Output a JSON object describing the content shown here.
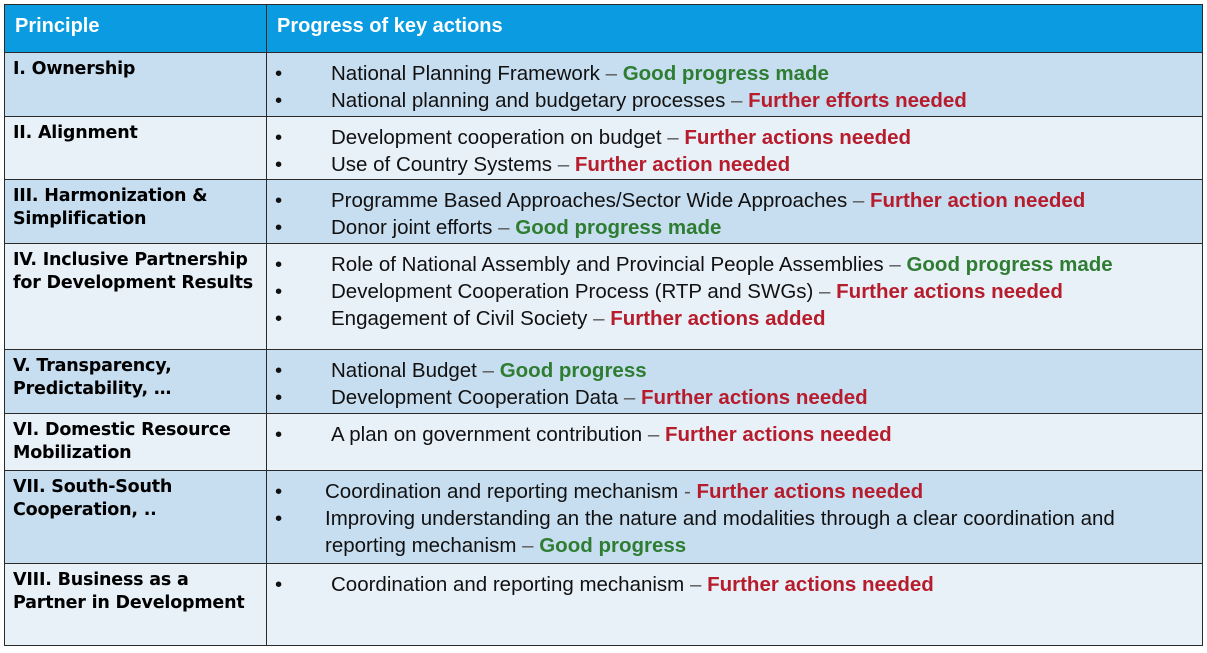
{
  "header": {
    "col_principle": "Principle",
    "col_progress": "Progress of key actions"
  },
  "rows": [
    {
      "principle": "I. Ownership",
      "items": [
        {
          "text": "National Planning Framework",
          "sep": "–",
          "status": "Good progress made",
          "kind": "good"
        },
        {
          "text": "National planning and budgetary processes",
          "sep": "–",
          "status": "Further efforts needed",
          "kind": "bad"
        }
      ]
    },
    {
      "principle": "II. Alignment",
      "items": [
        {
          "text": "Development cooperation on budget",
          "sep": "–",
          "status": "Further actions needed",
          "kind": "bad"
        },
        {
          "text": "Use of Country Systems",
          "sep": "–",
          "status": "Further action needed",
          "kind": "bad"
        }
      ]
    },
    {
      "principle": "III. Harmonization & Simplification",
      "items": [
        {
          "text": "Programme Based Approaches/Sector Wide Approaches",
          "sep": "–",
          "status": "Further action needed",
          "kind": "bad"
        },
        {
          "text": "Donor joint efforts",
          "sep": "–",
          "status": "Good progress made",
          "kind": "good"
        }
      ]
    },
    {
      "principle": "IV. Inclusive Partnership for Development Results",
      "items": [
        {
          "text": "Role of National Assembly and Provincial People Assemblies",
          "sep": "–",
          "status": "Good progress made",
          "kind": "good"
        },
        {
          "text": "Development Cooperation Process (RTP and SWGs)",
          "sep": "–",
          "status": "Further actions needed",
          "kind": "bad"
        },
        {
          "text": "Engagement of Civil Society",
          "sep": "–",
          "status": "Further actions added",
          "kind": "bad"
        }
      ]
    },
    {
      "principle": "V. Transparency, Predictability, …",
      "items": [
        {
          "text": "National Budget",
          "sep": "–",
          "status": "Good progress",
          "kind": "good"
        },
        {
          "text": "Development Cooperation Data",
          "sep": "–",
          "status": "Further actions needed",
          "kind": "bad"
        }
      ]
    },
    {
      "principle": "VI. Domestic Resource Mobilization",
      "items": [
        {
          "text": "A plan on government contribution",
          "sep": "–",
          "status": "Further actions needed",
          "kind": "bad"
        }
      ]
    },
    {
      "principle": "VII. South-South Cooperation, ..",
      "tight": true,
      "items": [
        {
          "text": "Coordination and reporting mechanism ",
          "sep": "-",
          "status": "Further actions needed",
          "kind": "bad"
        },
        {
          "text": "Improving understanding an the nature and modalities through a clear coordination and reporting mechanism",
          "sep": "–",
          "status": "Good progress",
          "kind": "good"
        }
      ]
    },
    {
      "principle": "VIII. Business as a Partner in Development",
      "items": [
        {
          "text": "Coordination and reporting mechanism",
          "sep": "–",
          "status": "Further actions needed",
          "kind": "bad"
        }
      ]
    }
  ],
  "colors": {
    "header_bg": "#0a9be0",
    "row_shade": "#c7ddf0",
    "row_light": "#e8f0f8",
    "good": "#2e7d32",
    "bad": "#b71c2c"
  }
}
